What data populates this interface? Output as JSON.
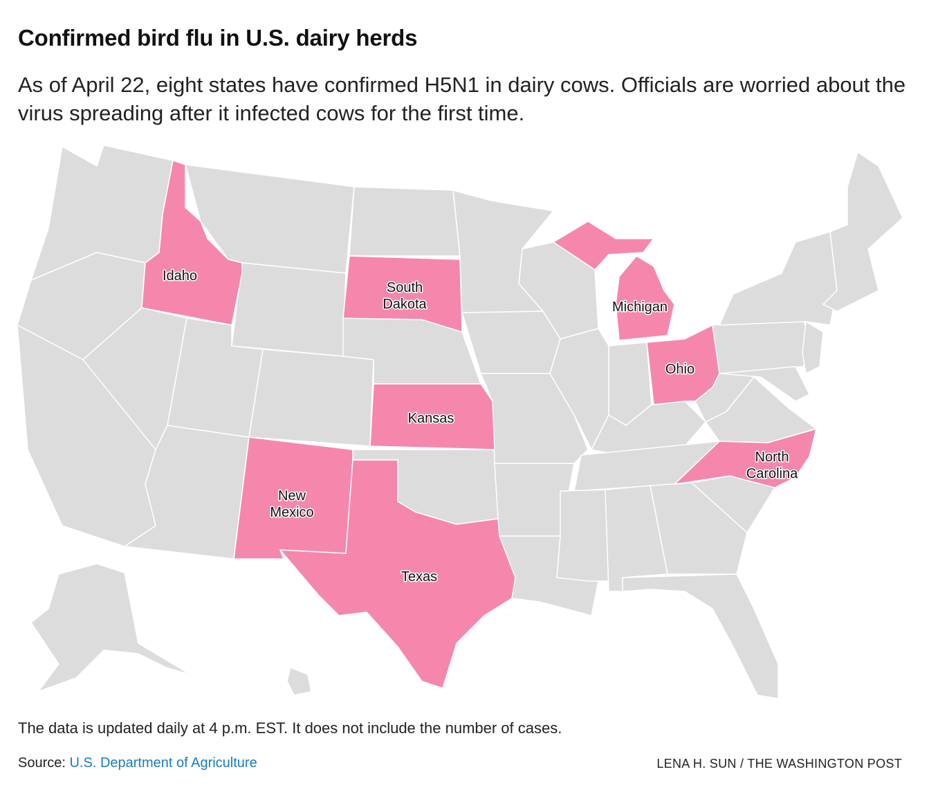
{
  "title": "Confirmed bird flu in U.S. dairy herds",
  "subtitle": "As of April 22, eight states have confirmed H5N1 in dairy cows. Officials are worried about the virus spreading after it infected cows for the first time.",
  "note": "The data is updated daily at 4 p.m. EST. It does not include the number of cases.",
  "source": {
    "prefix": "Source: ",
    "link_text": "U.S. Department of Agriculture"
  },
  "credit": "LENA H. SUN / THE WASHINGTON POST",
  "colors": {
    "affected": "#f687ac",
    "unaffected": "#dcdcdc",
    "border": "#ffffff",
    "link": "#1a7bb9"
  },
  "affected_states": [
    {
      "id": "idaho",
      "lines": [
        "Idaho"
      ]
    },
    {
      "id": "south-dakota",
      "lines": [
        "South",
        "Dakota"
      ]
    },
    {
      "id": "michigan",
      "lines": [
        "Michigan"
      ]
    },
    {
      "id": "ohio",
      "lines": [
        "Ohio"
      ]
    },
    {
      "id": "kansas",
      "lines": [
        "Kansas"
      ]
    },
    {
      "id": "north-carolina",
      "lines": [
        "North",
        "Carolina"
      ]
    },
    {
      "id": "new-mexico",
      "lines": [
        "New",
        "Mexico"
      ]
    },
    {
      "id": "texas",
      "lines": [
        "Texas"
      ]
    }
  ]
}
